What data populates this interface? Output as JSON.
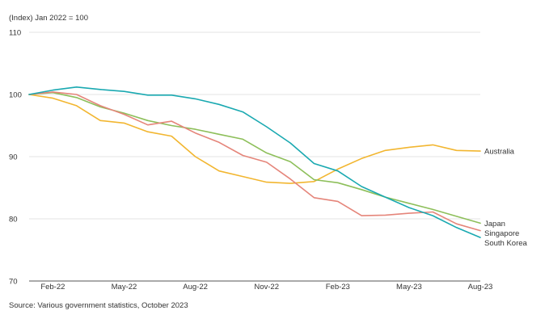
{
  "chart_data": {
    "type": "line",
    "title": "",
    "ylabel": "(Index) Jan 2022 = 100",
    "xlabel": "",
    "ylim": [
      70,
      110
    ],
    "yticks": [
      70,
      80,
      90,
      100,
      110
    ],
    "x": [
      "Jan-22",
      "Feb-22",
      "Mar-22",
      "Apr-22",
      "May-22",
      "Jun-22",
      "Jul-22",
      "Aug-22",
      "Sep-22",
      "Oct-22",
      "Nov-22",
      "Dec-22",
      "Jan-23",
      "Feb-23",
      "Mar-23",
      "Apr-23",
      "May-23",
      "Jun-23",
      "Jul-23",
      "Aug-23"
    ],
    "xtick_labels": [
      "Feb-22",
      "May-22",
      "Aug-22",
      "Nov-22",
      "Feb-23",
      "May-23",
      "Aug-23"
    ],
    "xtick_indices": [
      1,
      4,
      7,
      10,
      13,
      16,
      19
    ],
    "grid": true,
    "legend": "labels at line ends",
    "series": [
      {
        "name": "Australia",
        "color": "#f2b630",
        "values": [
          100,
          99.4,
          98.2,
          95.8,
          95.4,
          94.0,
          93.3,
          90.0,
          87.7,
          86.8,
          85.9,
          85.7,
          86.0,
          88.0,
          89.7,
          91.0,
          91.5,
          91.9,
          91.0,
          90.9
        ]
      },
      {
        "name": "Japan",
        "color": "#8dbf5a",
        "values": [
          100,
          100.3,
          99.5,
          98.0,
          97.0,
          95.8,
          95.0,
          94.4,
          93.6,
          92.8,
          90.6,
          89.2,
          86.3,
          85.8,
          84.7,
          83.5,
          82.5,
          81.5,
          80.4,
          79.3
        ]
      },
      {
        "name": "Singapore",
        "color": "#e5857a",
        "values": [
          100,
          100.4,
          100.0,
          98.2,
          96.8,
          95.1,
          95.7,
          93.8,
          92.3,
          90.2,
          89.1,
          86.4,
          83.4,
          82.8,
          80.5,
          80.6,
          80.9,
          81.1,
          79.2,
          78.1
        ]
      },
      {
        "name": "South Korea",
        "color": "#1aa9b1",
        "values": [
          100,
          100.7,
          101.2,
          100.8,
          100.5,
          99.9,
          99.9,
          99.3,
          98.4,
          97.2,
          94.8,
          92.2,
          88.9,
          87.7,
          85.2,
          83.5,
          81.8,
          80.5,
          78.6,
          77.0
        ]
      }
    ]
  },
  "source": "Source: Various government statistics, October 2023"
}
